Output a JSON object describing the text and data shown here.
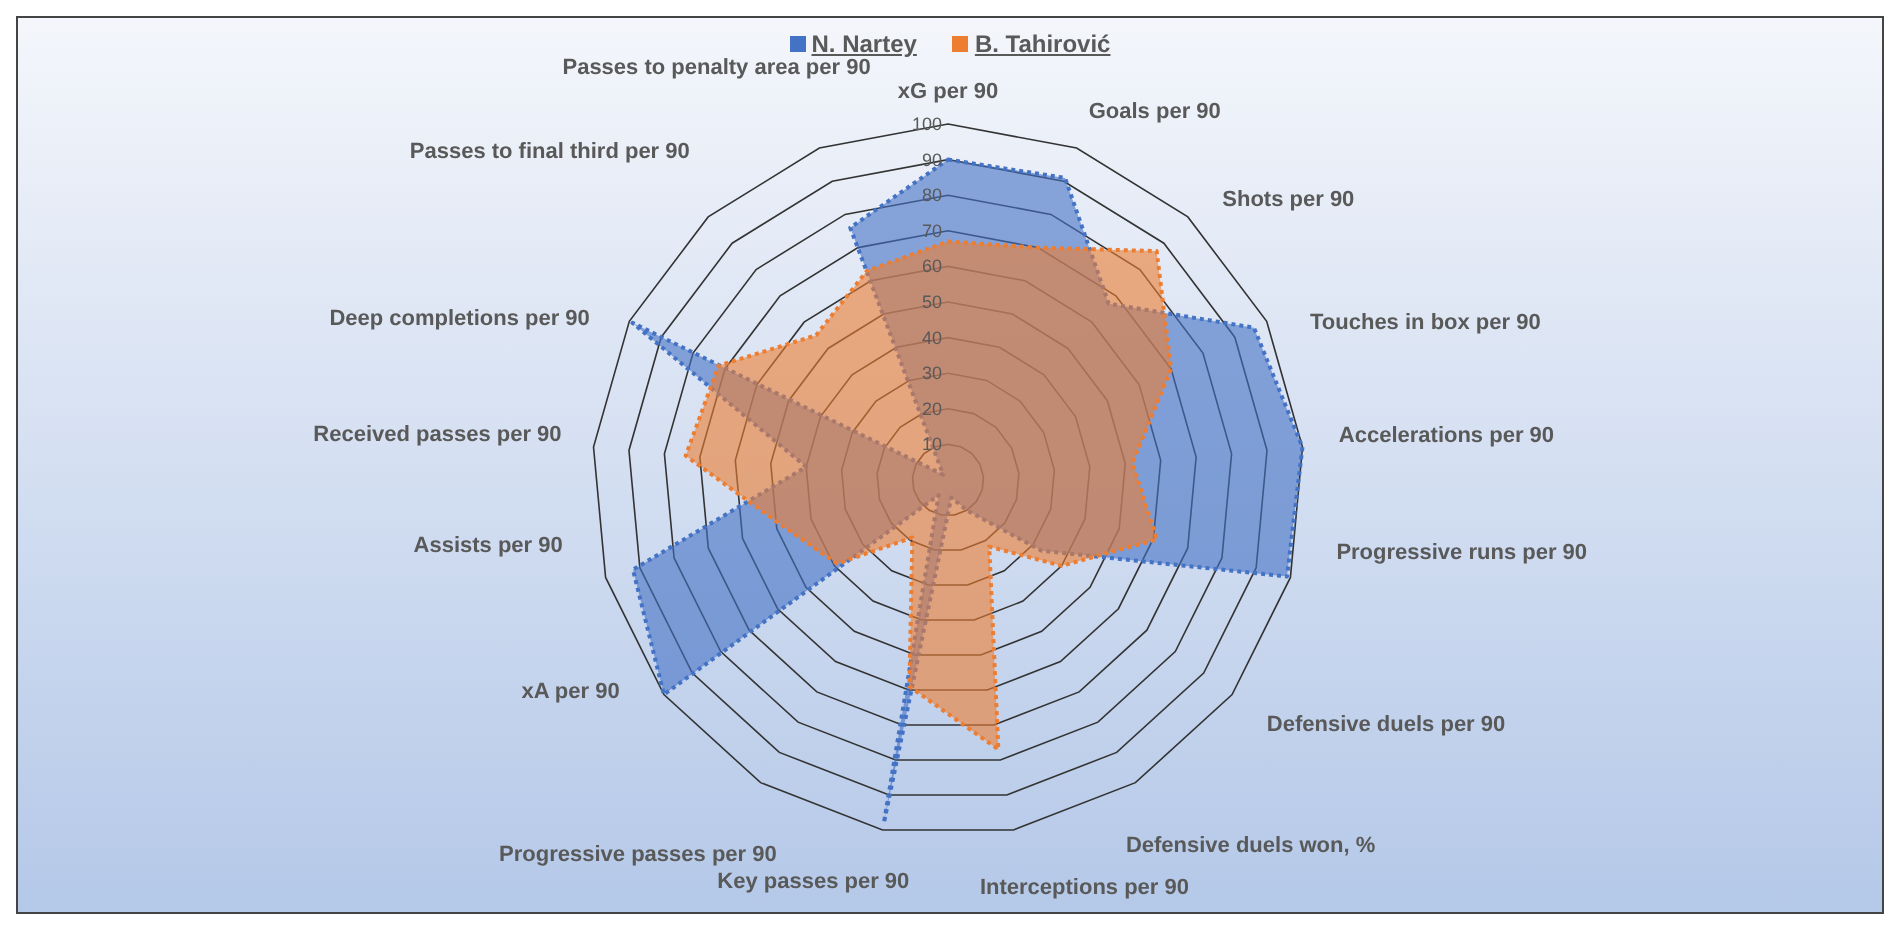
{
  "chart_data": {
    "type": "radar",
    "categories": [
      "xG per 90",
      "Goals per 90",
      "Shots per 90",
      "Touches in box per 90",
      "Accelerations per 90",
      "Progressive runs per 90",
      "Defensive duels per 90",
      "Defensive duels won, %",
      "Interceptions per 90",
      "Key passes per 90",
      "Progressive passes per 90",
      "xA per 90",
      "Assists per 90",
      "Received passes per 90",
      "Deep completions per 90",
      "Passes to final third per 90",
      "Passes to penalty area per 90"
    ],
    "series": [
      {
        "name": "N. Nartey",
        "color": "#4472c4",
        "values": [
          90,
          91,
          67,
          96,
          100,
          99,
          33,
          10,
          5,
          98,
          5,
          100,
          92,
          40,
          99,
          2,
          76
        ]
      },
      {
        "name": "B. Tahirović",
        "color": "#ed7d31",
        "values": [
          67,
          70,
          87,
          70,
          52,
          61,
          40,
          22,
          77,
          59,
          19,
          39,
          48,
          74,
          72,
          55,
          63
        ]
      }
    ],
    "ylim": [
      0,
      100
    ],
    "yticks": [
      10,
      20,
      30,
      40,
      50,
      60,
      70,
      80,
      90,
      100
    ],
    "grid": true,
    "legend": "top",
    "line_style": "dotted"
  }
}
